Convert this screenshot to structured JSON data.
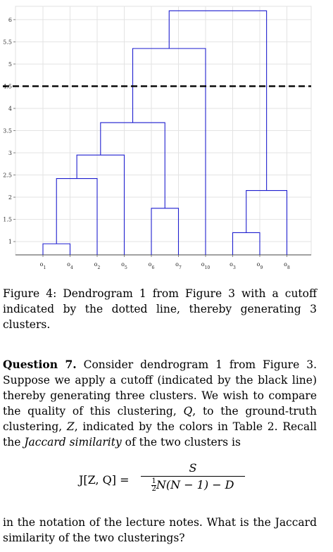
{
  "chart_data": {
    "type": "dendrogram",
    "yticks": [
      "6",
      "5.5",
      "5",
      "4.5",
      "4",
      "3.5",
      "3",
      "2.5",
      "2",
      "1.5",
      "1"
    ],
    "ytick_values": [
      6,
      5.5,
      5,
      4.5,
      4,
      3.5,
      3,
      2.5,
      2,
      1.5,
      1
    ],
    "ylim": [
      0.7,
      6.3
    ],
    "leaves": [
      "o1",
      "o4",
      "o2",
      "o5",
      "o6",
      "o7",
      "o10",
      "o3",
      "o9",
      "o8"
    ],
    "merges": [
      {
        "left": "o1",
        "right": "o4",
        "height": 0.95
      },
      {
        "left": "o6",
        "right": "o7",
        "height": 1.75
      },
      {
        "left": "o3",
        "right": "o9",
        "height": 1.2
      },
      {
        "left": "(o3,o9)",
        "right": "o8",
        "height": 2.15
      },
      {
        "left": "(o1,o4)",
        "right": "o2",
        "height": 2.42
      },
      {
        "left": "(o1,o4,o2)",
        "right": "o5",
        "height": 2.95
      },
      {
        "left": "(o1,o4,o2,o5)",
        "right": "(o6,o7)",
        "height": 3.68
      },
      {
        "left": "(o1,o4,o2,o5,o6,o7)",
        "right": "o10",
        "height": 5.35
      },
      {
        "left": "(o1,o4,o2,o5,o6,o7,o10)",
        "right": "(o3,o9,o8)",
        "height": 6.2
      }
    ],
    "cutoff": 4.5,
    "grid": true,
    "link_color": "#1f1fcf",
    "cutoff_color": "#000000"
  },
  "caption": {
    "text": "Figure 4: Dendrogram 1 from Figure 3 with a cutoff indicated by the dotted line, thereby generating 3 clusters."
  },
  "question": {
    "label": "Question 7.",
    "p1": "Consider dendrogram 1 from Figure 3. Suppose we apply a cutoff (indicated by the black line) thereby generating three clusters. We wish to compare the quality of this clustering, ",
    "q_symbol": "Q",
    "p2": ", to the ground-truth clustering, ",
    "z_symbol": "Z",
    "p3": ", indicated by the colors in Table 2. Recall the ",
    "jaccard_term": "Jaccard similarity",
    "p4": " of the two clusters is"
  },
  "formula": {
    "lhs": "J[Z, Q] =",
    "numerator": "S",
    "half_num": "1",
    "half_den": "2",
    "denominator": "N(N − 1) − D"
  },
  "tail": {
    "text": "in the notation of the lecture notes. What is the Jaccard similarity of the two clusterings?"
  }
}
